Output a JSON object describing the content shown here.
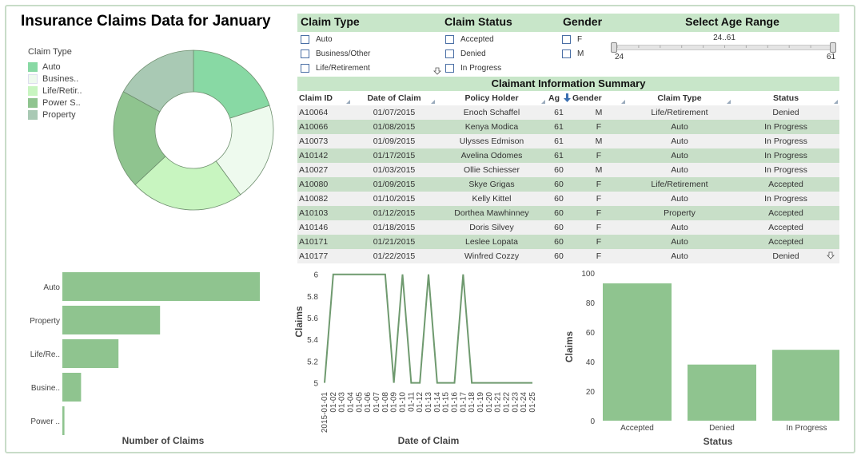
{
  "title": "Insurance Claims Data for January",
  "pie": {
    "legend_title": "Claim Type",
    "items": [
      {
        "label": "Auto",
        "color": "#88d9a4"
      },
      {
        "label": "Busines..",
        "color": "#eefaee"
      },
      {
        "label": "Life/Retir..",
        "color": "#c8f5c0"
      },
      {
        "label": "Power S..",
        "color": "#8fc48f"
      },
      {
        "label": "Property",
        "color": "#a9c9b4"
      }
    ]
  },
  "filters": {
    "claim_type": {
      "title": "Claim Type",
      "options": [
        "Auto",
        "Business/Other",
        "Life/Retirement"
      ]
    },
    "claim_status": {
      "title": "Claim Status",
      "options": [
        "Accepted",
        "Denied",
        "In Progress"
      ]
    },
    "gender": {
      "title": "Gender",
      "options": [
        "F",
        "M"
      ]
    },
    "age": {
      "title": "Select Age Range",
      "range_label": "24..61",
      "min": "24",
      "max": "61"
    }
  },
  "table": {
    "title": "Claimant Information Summary",
    "columns": [
      "Claim ID",
      "Date of Claim",
      "Policy Holder",
      "Ag",
      "Gender",
      "Claim Type",
      "Status"
    ],
    "rows": [
      [
        "A10064",
        "01/07/2015",
        "Enoch Schaffel",
        "61",
        "M",
        "Life/Retirement",
        "Denied"
      ],
      [
        "A10066",
        "01/08/2015",
        "Kenya Modica",
        "61",
        "F",
        "Auto",
        "In Progress"
      ],
      [
        "A10073",
        "01/09/2015",
        "Ulysses Edmison",
        "61",
        "M",
        "Auto",
        "In Progress"
      ],
      [
        "A10142",
        "01/17/2015",
        "Avelina Odomes",
        "61",
        "F",
        "Auto",
        "In Progress"
      ],
      [
        "A10027",
        "01/03/2015",
        "Ollie Schiesser",
        "60",
        "M",
        "Auto",
        "In Progress"
      ],
      [
        "A10080",
        "01/09/2015",
        "Skye Grigas",
        "60",
        "F",
        "Life/Retirement",
        "Accepted"
      ],
      [
        "A10082",
        "01/10/2015",
        "Kelly Kittel",
        "60",
        "F",
        "Auto",
        "In Progress"
      ],
      [
        "A10103",
        "01/12/2015",
        "Dorthea Mawhinney",
        "60",
        "F",
        "Property",
        "Accepted"
      ],
      [
        "A10146",
        "01/18/2015",
        "Doris Silvey",
        "60",
        "F",
        "Auto",
        "Accepted"
      ],
      [
        "A10171",
        "01/21/2015",
        "Leslee Lopata",
        "60",
        "F",
        "Auto",
        "Accepted"
      ],
      [
        "A10177",
        "01/22/2015",
        "Winfred Cozzy",
        "60",
        "F",
        "Auto",
        "Denied"
      ]
    ]
  },
  "chart_data": [
    {
      "type": "pie",
      "title": "",
      "legend_title": "Claim Type",
      "categories": [
        "Auto",
        "Busines..",
        "Life/Retir..",
        "Power S..",
        "Property"
      ],
      "values": [
        20,
        20,
        23,
        20,
        17
      ],
      "colors": [
        "#88d9a4",
        "#eefaee",
        "#c8f5c0",
        "#8fc48f",
        "#a9c9b4"
      ],
      "donut": true
    },
    {
      "type": "bar",
      "orientation": "horizontal",
      "categories": [
        "Auto",
        "Property",
        "Life/Re..",
        "Busine..",
        "Power .."
      ],
      "values": [
        95,
        47,
        27,
        9,
        1
      ],
      "xlabel": "Number of Claims",
      "xlim": [
        0,
        100
      ],
      "color": "#8fc48f"
    },
    {
      "type": "line",
      "x": [
        "2015-01-01",
        "01-02",
        "01-03",
        "01-04",
        "01-05",
        "01-06",
        "01-07",
        "01-08",
        "01-09",
        "01-10",
        "01-11",
        "01-12",
        "01-13",
        "01-14",
        "01-15",
        "01-16",
        "01-17",
        "01-18",
        "01-19",
        "01-20",
        "01-21",
        "01-22",
        "01-23",
        "01-24",
        "01-25"
      ],
      "y": [
        5,
        6,
        6,
        6,
        6,
        6,
        6,
        6,
        5,
        6,
        5,
        5,
        6,
        5,
        5,
        5,
        6,
        5,
        5,
        5,
        5,
        5,
        5,
        5,
        5
      ],
      "xlabel": "Date of Claim",
      "ylabel": "Claims",
      "ylim": [
        4.96,
        6.02
      ],
      "yticks": [
        "5",
        "5.2",
        "5.4",
        "5.6",
        "5.8",
        "6"
      ],
      "color": "#6f9a6f"
    },
    {
      "type": "bar",
      "categories": [
        "Accepted",
        "Denied",
        "In Progress"
      ],
      "values": [
        93,
        38,
        48
      ],
      "xlabel": "Status",
      "ylabel": "Claims",
      "ylim": [
        0,
        100
      ],
      "yticks": [
        "0",
        "20",
        "40",
        "60",
        "80",
        "100"
      ],
      "color": "#8fc48f"
    }
  ]
}
